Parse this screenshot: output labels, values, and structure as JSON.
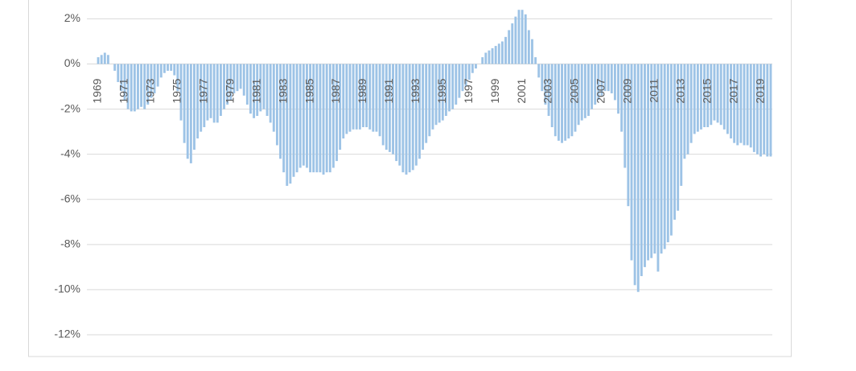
{
  "chart_data": {
    "type": "bar",
    "color": "#9dc3e6",
    "categories": [
      "1969",
      null,
      null,
      null,
      null,
      null,
      null,
      null,
      "1971",
      null,
      null,
      null,
      null,
      null,
      null,
      null,
      "1973",
      null,
      null,
      null,
      null,
      null,
      null,
      null,
      "1975",
      null,
      null,
      null,
      null,
      null,
      null,
      null,
      "1977",
      null,
      null,
      null,
      null,
      null,
      null,
      null,
      "1979",
      null,
      null,
      null,
      null,
      null,
      null,
      null,
      "1981",
      null,
      null,
      null,
      null,
      null,
      null,
      null,
      "1983",
      null,
      null,
      null,
      null,
      null,
      null,
      null,
      "1985",
      null,
      null,
      null,
      null,
      null,
      null,
      null,
      "1987",
      null,
      null,
      null,
      null,
      null,
      null,
      null,
      "1989",
      null,
      null,
      null,
      null,
      null,
      null,
      null,
      "1991",
      null,
      null,
      null,
      null,
      null,
      null,
      null,
      "1993",
      null,
      null,
      null,
      null,
      null,
      null,
      null,
      "1995",
      null,
      null,
      null,
      null,
      null,
      null,
      null,
      "1997",
      null,
      null,
      null,
      null,
      null,
      null,
      null,
      "1999",
      null,
      null,
      null,
      null,
      null,
      null,
      null,
      "2001",
      null,
      null,
      null,
      null,
      null,
      null,
      null,
      "2003",
      null,
      null,
      null,
      null,
      null,
      null,
      null,
      "2005",
      null,
      null,
      null,
      null,
      null,
      null,
      null,
      "2007",
      null,
      null,
      null,
      null,
      null,
      null,
      null,
      "2009",
      null,
      null,
      null,
      null,
      null,
      null,
      null,
      "2011",
      null,
      null,
      null,
      null,
      null,
      null,
      null,
      "2013",
      null,
      null,
      null,
      null,
      null,
      null,
      null,
      "2015",
      null,
      null,
      null,
      null,
      null,
      null,
      null,
      "2017",
      null,
      null,
      null,
      null,
      null,
      null,
      null,
      "2019",
      null,
      null,
      null
    ],
    "values": [
      0.3,
      0.4,
      0.5,
      0.4,
      0.0,
      -0.3,
      -0.8,
      -1.2,
      -1.6,
      -2.0,
      -2.1,
      -2.1,
      -2.0,
      -1.9,
      -2.0,
      -1.8,
      -1.5,
      -1.3,
      -1.0,
      -0.6,
      -0.4,
      -0.3,
      -0.3,
      -0.5,
      -1.2,
      -2.5,
      -3.5,
      -4.2,
      -4.4,
      -3.8,
      -3.3,
      -3.0,
      -2.8,
      -2.5,
      -2.4,
      -2.6,
      -2.6,
      -2.3,
      -2.0,
      -1.8,
      -1.6,
      -1.3,
      -1.2,
      -1.1,
      -1.4,
      -1.8,
      -2.2,
      -2.4,
      -2.3,
      -2.1,
      -2.0,
      -2.3,
      -2.6,
      -3.0,
      -3.6,
      -4.2,
      -4.8,
      -5.4,
      -5.3,
      -5.0,
      -4.8,
      -4.6,
      -4.5,
      -4.6,
      -4.8,
      -4.8,
      -4.8,
      -4.8,
      -4.9,
      -4.8,
      -4.8,
      -4.6,
      -4.3,
      -3.8,
      -3.3,
      -3.1,
      -3.0,
      -2.9,
      -2.9,
      -2.9,
      -2.8,
      -2.8,
      -2.9,
      -3.0,
      -3.0,
      -3.2,
      -3.6,
      -3.8,
      -3.9,
      -4.0,
      -4.3,
      -4.5,
      -4.8,
      -4.9,
      -4.8,
      -4.7,
      -4.5,
      -4.2,
      -3.8,
      -3.5,
      -3.2,
      -2.9,
      -2.7,
      -2.6,
      -2.5,
      -2.3,
      -2.1,
      -2.0,
      -1.8,
      -1.5,
      -1.2,
      -1.0,
      -0.7,
      -0.4,
      -0.2,
      0.0,
      0.3,
      0.5,
      0.6,
      0.7,
      0.8,
      0.9,
      1.0,
      1.2,
      1.5,
      1.8,
      2.1,
      2.4,
      2.4,
      2.2,
      1.5,
      1.1,
      0.3,
      -0.6,
      -1.2,
      -1.8,
      -2.3,
      -2.8,
      -3.2,
      -3.4,
      -3.5,
      -3.4,
      -3.3,
      -3.2,
      -3.0,
      -2.7,
      -2.5,
      -2.4,
      -2.3,
      -2.0,
      -1.8,
      -1.6,
      -1.4,
      -1.2,
      -1.2,
      -1.3,
      -1.6,
      -2.2,
      -3.0,
      -4.6,
      -6.3,
      -8.7,
      -9.8,
      -10.1,
      -9.4,
      -9.0,
      -8.7,
      -8.6,
      -8.4,
      -9.2,
      -8.4,
      -8.2,
      -7.9,
      -7.6,
      -6.9,
      -6.5,
      -5.4,
      -4.2,
      -4.0,
      -3.5,
      -3.1,
      -3.0,
      -2.9,
      -2.8,
      -2.8,
      -2.7,
      -2.5,
      -2.6,
      -2.7,
      -2.9,
      -3.1,
      -3.3,
      -3.5,
      -3.6,
      -3.5,
      -3.6,
      -3.6,
      -3.7,
      -3.9,
      -4.0,
      -4.1,
      -4.0,
      -4.1,
      -4.1
    ],
    "ylim": [
      -12,
      2.8
    ],
    "yticks": [
      {
        "value": 2,
        "label": "2%"
      },
      {
        "value": 0,
        "label": "0%"
      },
      {
        "value": -2,
        "label": "-2%"
      },
      {
        "value": -4,
        "label": "-4%"
      },
      {
        "value": -6,
        "label": "-6%"
      },
      {
        "value": -8,
        "label": "-8%"
      },
      {
        "value": -10,
        "label": "-10%"
      },
      {
        "value": -12,
        "label": "-12%"
      }
    ],
    "grid": true
  }
}
